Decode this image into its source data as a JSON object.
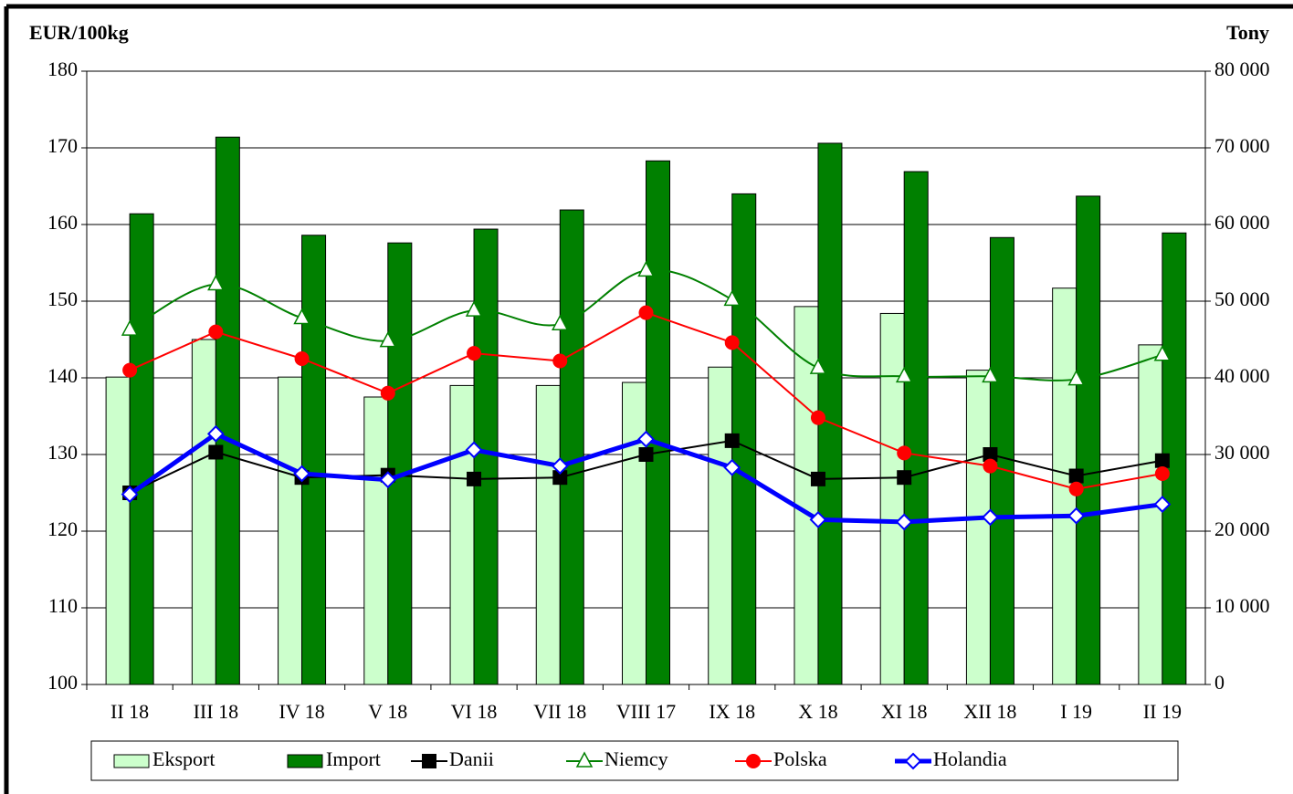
{
  "chart_data": {
    "type": "bar-line",
    "y_label": "EUR/100kg",
    "y2_label": "Tony",
    "categories": [
      "II 18",
      "III 18",
      "IV 18",
      "V 18",
      "VI 18",
      "VII 18",
      "VIII 17",
      "IX 18",
      "X 18",
      "XI 18",
      "XII 18",
      "I 19",
      "II 19"
    ],
    "ylim": [
      100,
      180
    ],
    "yticks": [
      100,
      110,
      120,
      130,
      140,
      150,
      160,
      170,
      180
    ],
    "y2lim": [
      0,
      80000
    ],
    "y2ticks": [
      0,
      {
        "value": 10000,
        "label": "10 000"
      },
      {
        "value": 20000,
        "label": "20 000"
      },
      {
        "value": 30000,
        "label": "30 000"
      },
      {
        "value": 40000,
        "label": "40 000"
      },
      {
        "value": 50000,
        "label": "50 000"
      },
      {
        "value": 60000,
        "label": "60 000"
      },
      {
        "value": 70000,
        "label": "70 000"
      },
      {
        "value": 80000,
        "label": "80 000"
      }
    ],
    "series": [
      {
        "name": "Eksport",
        "kind": "bar",
        "axis": "y2",
        "color": "#ccffcc",
        "values": [
          40100,
          45000,
          40100,
          37500,
          39000,
          39000,
          39400,
          41400,
          49300,
          48400,
          41000,
          51700,
          44300
        ]
      },
      {
        "name": "Import",
        "kind": "bar",
        "axis": "y2",
        "color": "#008000",
        "values": [
          61400,
          71400,
          58600,
          57600,
          59400,
          61900,
          68300,
          64000,
          70600,
          66900,
          58300,
          63700,
          58900
        ]
      },
      {
        "name": "Danii",
        "kind": "line",
        "color": "#000000",
        "marker": "square",
        "values": [
          125.0,
          130.3,
          127.0,
          127.3,
          126.8,
          127.0,
          130.0,
          131.8,
          126.8,
          127.0,
          130.0,
          127.2,
          129.2
        ]
      },
      {
        "name": "Niemcy",
        "kind": "line",
        "color": "#008000",
        "marker": "triangle",
        "smooth": true,
        "values": [
          146.3,
          152.2,
          147.8,
          144.8,
          148.8,
          147.0,
          154.0,
          150.2,
          141.3,
          140.2,
          140.2,
          139.8,
          143.0
        ]
      },
      {
        "name": "Polska",
        "kind": "line",
        "color": "#ff0000",
        "marker": "circle",
        "values": [
          141.0,
          146.0,
          142.5,
          138.0,
          143.2,
          142.2,
          148.5,
          144.6,
          134.8,
          130.2,
          128.5,
          125.5,
          127.5
        ]
      },
      {
        "name": "Holandia",
        "kind": "line",
        "color": "#0000ff",
        "marker": "diamond",
        "width": 5,
        "values": [
          124.8,
          132.7,
          127.5,
          126.7,
          130.6,
          128.5,
          132.0,
          128.3,
          121.5,
          121.2,
          121.8,
          122.0,
          123.5
        ]
      }
    ]
  }
}
